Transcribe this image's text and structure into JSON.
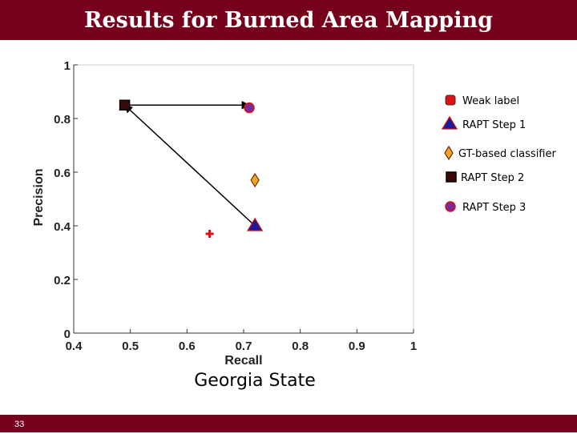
{
  "slide": {
    "title": "Results for Burned Area Mapping",
    "caption": "Georgia State",
    "page_number": "33",
    "colors": {
      "accent": "#76001b",
      "text_on_accent": "#ffffff"
    }
  },
  "chart_data": {
    "type": "scatter",
    "xlabel": "Recall",
    "ylabel": "Precision",
    "xlim": [
      0.4,
      1.0
    ],
    "ylim": [
      0.0,
      1.0
    ],
    "x_ticks": [
      "0.4",
      "0.5",
      "0.6",
      "0.7",
      "0.8",
      "0.9",
      "1"
    ],
    "y_ticks": [
      "0",
      "0.2",
      "0.4",
      "0.6",
      "0.8",
      "1"
    ],
    "grid": false,
    "legend_position": "right",
    "series": [
      {
        "name": "Weak label",
        "marker": "plus",
        "color": "#dd1111",
        "x": 0.64,
        "y": 0.37
      },
      {
        "name": "RAPT Step 1",
        "marker": "triangle",
        "color": "#1a1aa0",
        "x": 0.72,
        "y": 0.4
      },
      {
        "name": "GT-based classifier",
        "marker": "diamond",
        "color": "#f5a623",
        "x": 0.72,
        "y": 0.57
      },
      {
        "name": "RAPT Step 2",
        "marker": "square",
        "color": "#3a0a0a",
        "x": 0.49,
        "y": 0.85
      },
      {
        "name": "RAPT Step 3",
        "marker": "circle",
        "color": "#7a2a9a",
        "x": 0.71,
        "y": 0.84
      }
    ],
    "arrows": [
      {
        "from": [
          0.72,
          0.4
        ],
        "to": [
          0.49,
          0.85
        ]
      },
      {
        "from": [
          0.49,
          0.85
        ],
        "to": [
          0.71,
          0.85
        ]
      }
    ]
  }
}
